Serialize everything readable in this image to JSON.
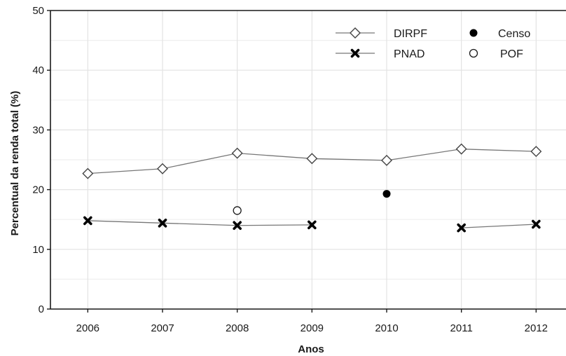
{
  "chart_data": {
    "type": "line",
    "title": "",
    "xlabel": "Anos",
    "ylabel": "Percentual da renda total (%)",
    "x": [
      2006,
      2007,
      2008,
      2009,
      2010,
      2011,
      2012
    ],
    "xlim": [
      2005.5,
      2012.4
    ],
    "ylim": [
      0,
      50
    ],
    "yticks": [
      0,
      10,
      20,
      30,
      40,
      50
    ],
    "grid": true,
    "legend_position": "top-right",
    "series": [
      {
        "name": "DIRPF",
        "marker": "open-diamond",
        "line": true,
        "color": "#777777",
        "values": [
          22.7,
          23.5,
          26.1,
          25.2,
          24.9,
          26.8,
          26.4
        ]
      },
      {
        "name": "PNAD",
        "marker": "x-cross",
        "line": true,
        "color": "#777777",
        "values": [
          14.8,
          14.4,
          14.0,
          14.1,
          null,
          13.6,
          14.2
        ]
      },
      {
        "name": "Censo",
        "marker": "filled-circle",
        "line": false,
        "color": "#000000",
        "values": [
          null,
          null,
          null,
          null,
          19.3,
          null,
          null
        ]
      },
      {
        "name": "POF",
        "marker": "open-circle",
        "line": false,
        "color": "#000000",
        "values": [
          null,
          null,
          16.5,
          null,
          null,
          null,
          null
        ]
      }
    ]
  }
}
